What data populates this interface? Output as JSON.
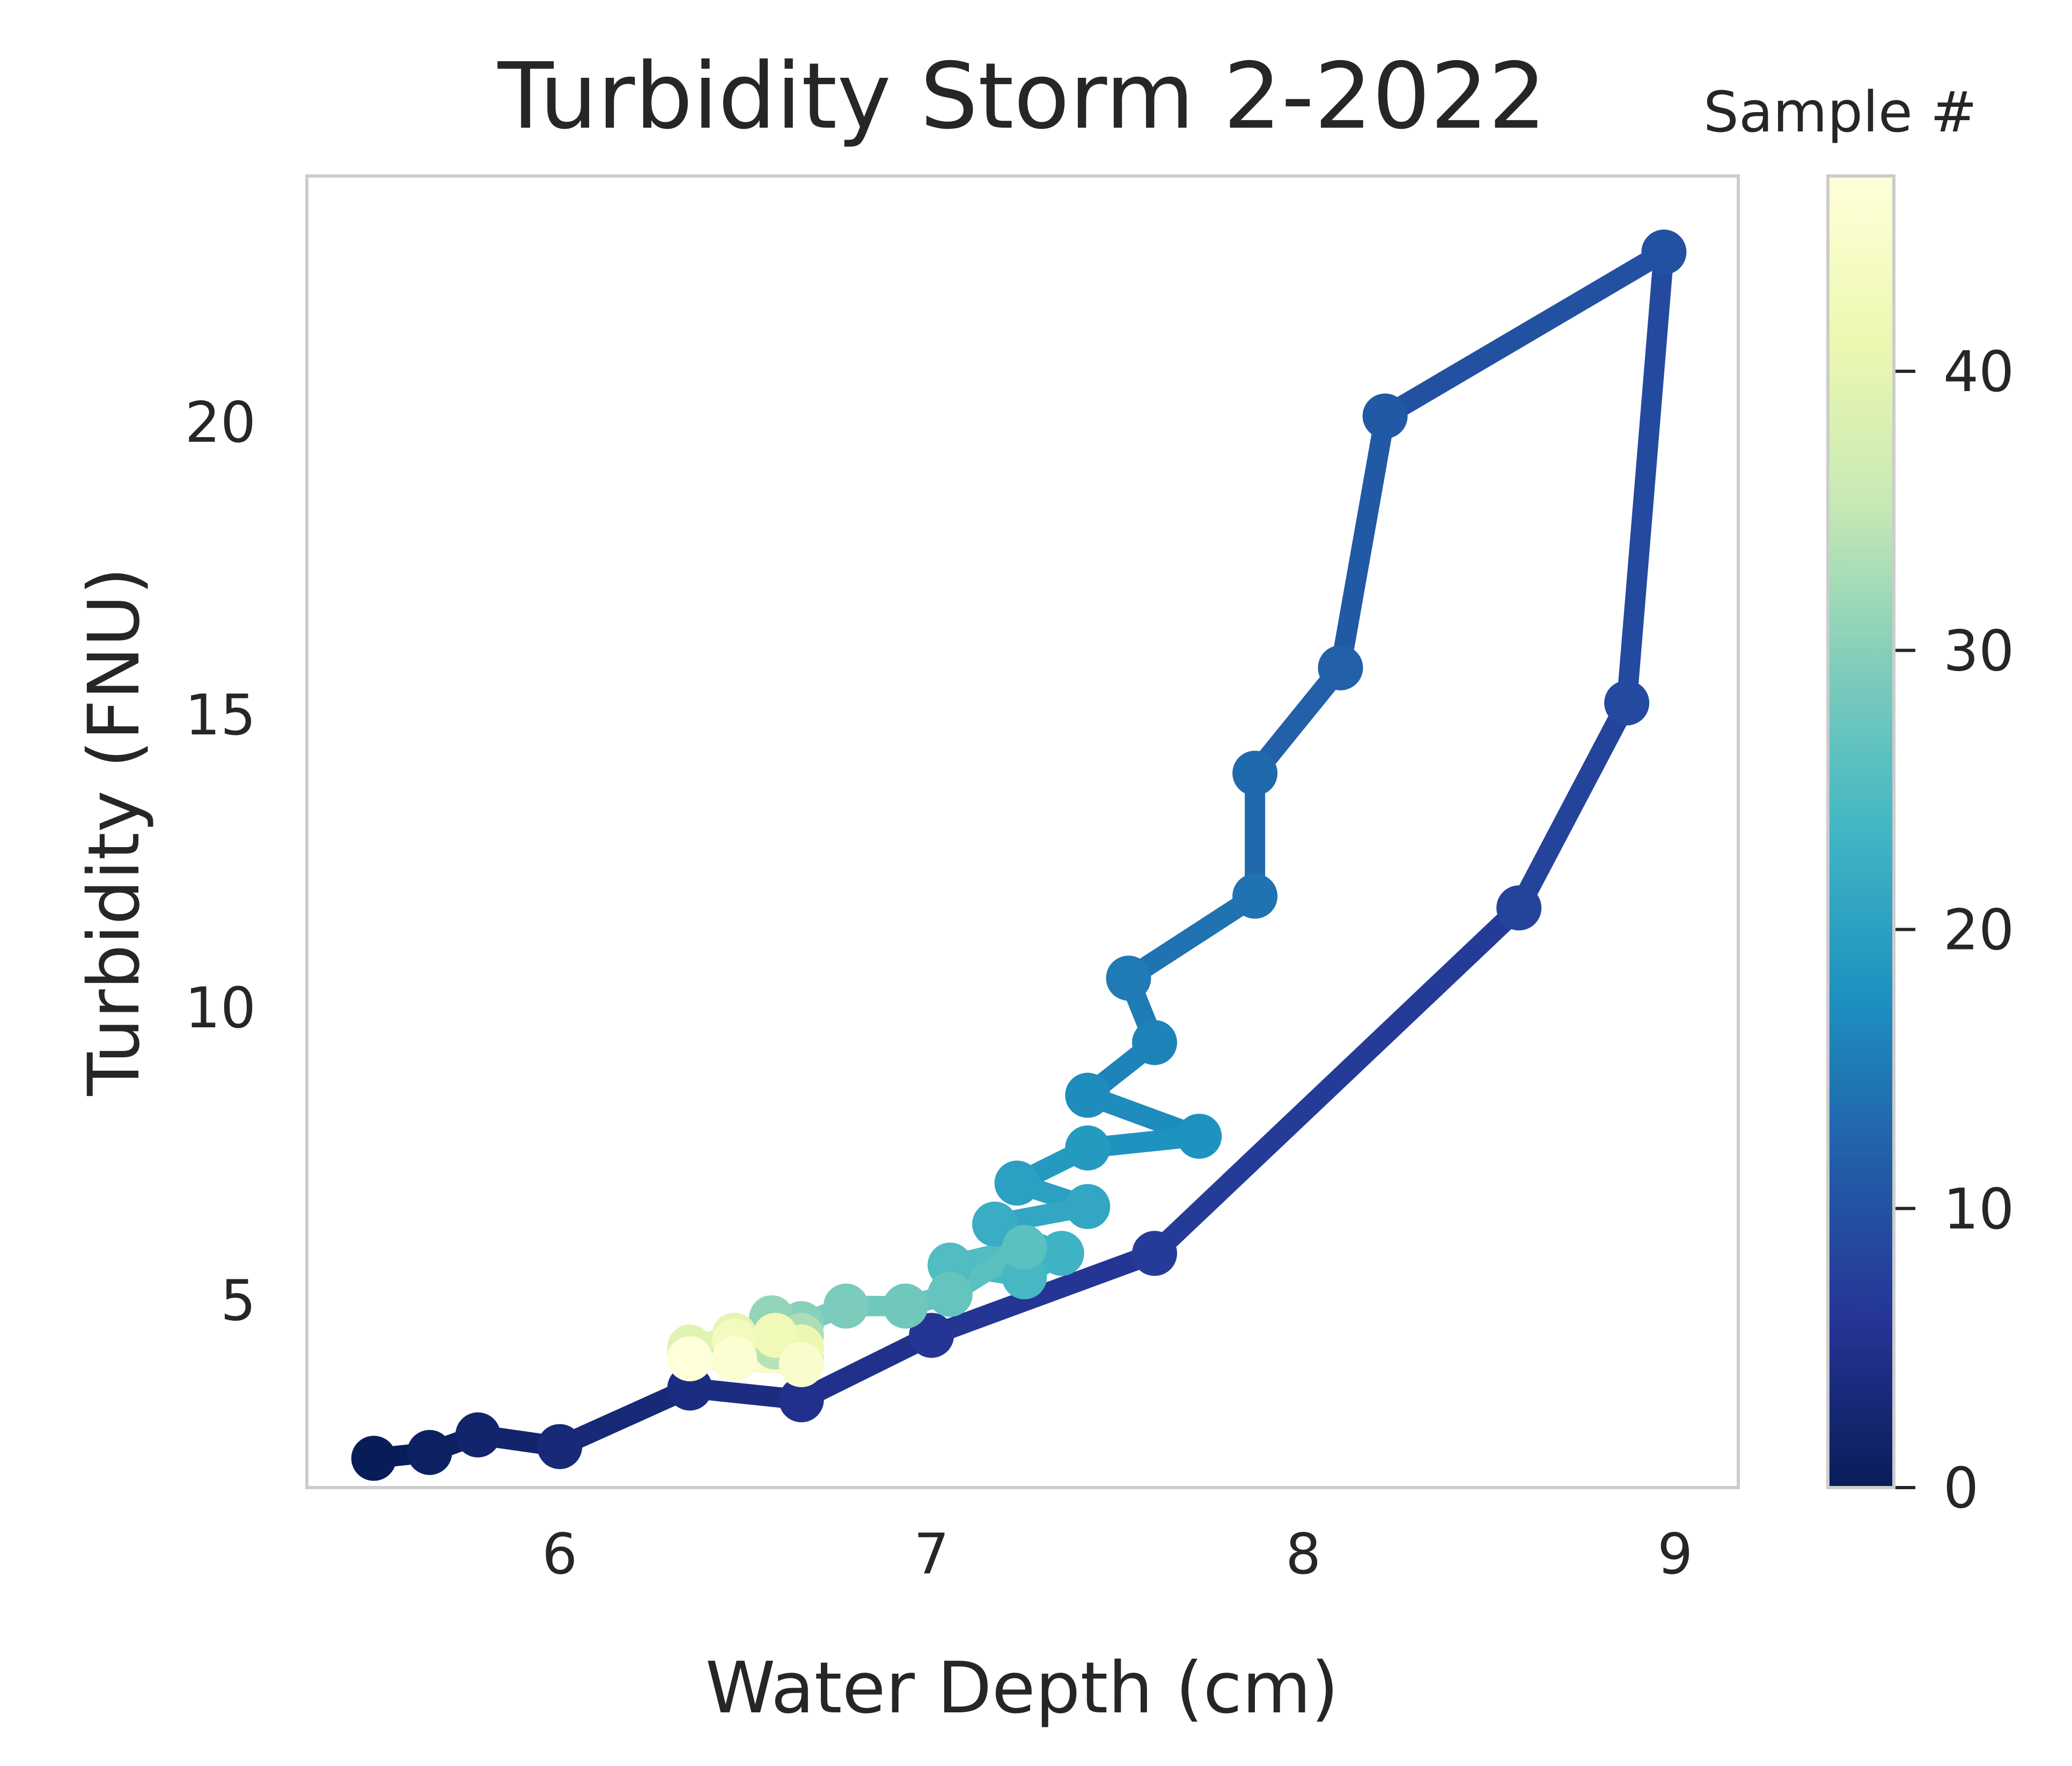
{
  "chart_data": {
    "type": "line",
    "title": "Turbidity Storm 2-2022",
    "xlabel": "Water Depth (cm)",
    "ylabel": "Turbidity (FNU)",
    "xlim": [
      5.32,
      9.17
    ],
    "ylim": [
      1.8,
      24.2
    ],
    "xticks": [
      6,
      7,
      8,
      9
    ],
    "yticks": [
      5,
      10,
      15,
      20
    ],
    "grid": false,
    "colormap": "YlGnBu_r",
    "colorbar": {
      "title": "Sample #",
      "range": [
        0,
        47
      ],
      "ticks": [
        0,
        10,
        20,
        30,
        40
      ],
      "stops": [
        "#081d58",
        "#253494",
        "#225ea8",
        "#1d91c0",
        "#41b6c4",
        "#7fcdbb",
        "#c7e9b4",
        "#edf8b1",
        "#ffffd9"
      ]
    },
    "series": [
      {
        "sample": [
          0,
          1,
          2,
          3,
          4,
          5,
          6,
          7,
          8,
          9,
          10,
          11,
          12,
          13,
          14,
          15,
          16,
          17,
          18,
          19,
          20,
          21,
          22,
          23,
          24,
          25,
          26,
          27,
          28,
          29,
          30,
          31,
          32,
          33,
          34,
          35,
          36,
          37,
          38,
          39,
          40,
          41,
          42,
          43,
          44,
          45,
          46,
          47
        ],
        "x": [
          5.5,
          5.65,
          5.78,
          6.0,
          6.35,
          6.65,
          7.0,
          7.6,
          8.58,
          8.87,
          8.97,
          8.22,
          8.1,
          7.87,
          7.87,
          7.53,
          7.6,
          7.42,
          7.72,
          7.42,
          7.23,
          7.42,
          7.17,
          7.35,
          7.25,
          7.05,
          7.25,
          7.05,
          6.93,
          6.77,
          6.65,
          6.57,
          6.47,
          6.65,
          6.58,
          6.47,
          6.35,
          6.65,
          6.47,
          6.35,
          6.47,
          6.65,
          6.58,
          6.47,
          6.35,
          6.65,
          6.47,
          6.35
        ],
        "y": [
          2.3,
          2.4,
          2.7,
          2.5,
          3.5,
          3.3,
          4.4,
          5.8,
          11.7,
          15.2,
          22.9,
          20.1,
          15.8,
          14.0,
          11.9,
          10.5,
          9.4,
          8.5,
          7.8,
          7.6,
          7.0,
          6.6,
          6.3,
          5.8,
          5.4,
          5.6,
          5.9,
          5.1,
          4.9,
          4.9,
          4.6,
          4.7,
          4.4,
          4.4,
          4.2,
          4.2,
          4.1,
          4.0,
          4.0,
          4.2,
          4.4,
          4.2,
          4.4,
          4.3,
          4.0,
          3.9,
          4.0,
          4.0
        ]
      }
    ]
  }
}
